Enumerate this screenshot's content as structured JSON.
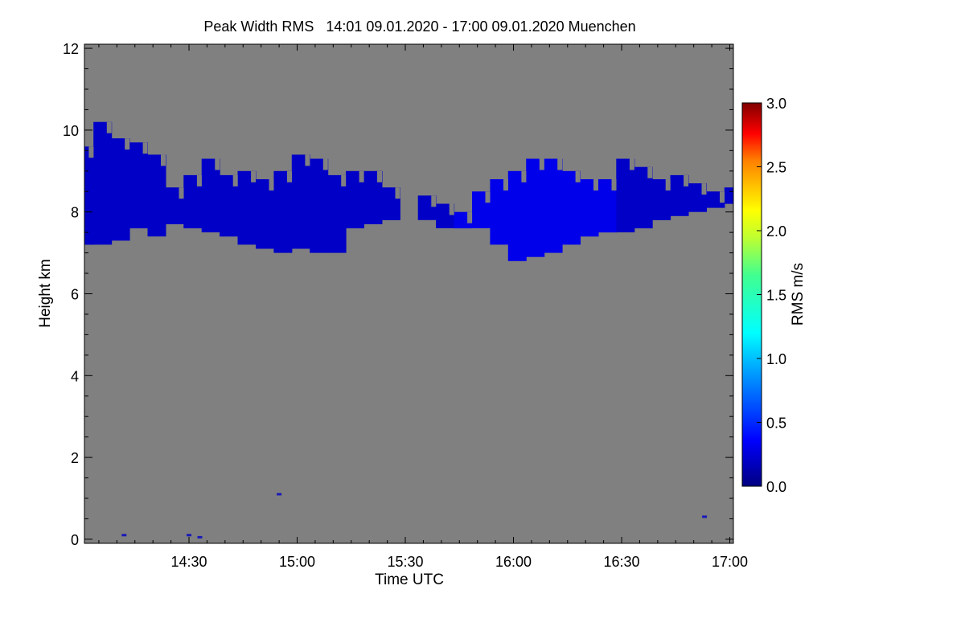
{
  "chart_data": {
    "type": "heatmap",
    "title": "Peak Width RMS   14:01 09.01.2020 - 17:00 09.01.2020 Muenchen",
    "xlabel": "Time UTC",
    "ylabel": "Height km",
    "colorbar_label": "RMS m/s",
    "x_range_minutes_utc": [
      841,
      1021
    ],
    "x_ticks": [
      {
        "minutes": 870,
        "label": "14:30"
      },
      {
        "minutes": 900,
        "label": "15:00"
      },
      {
        "minutes": 930,
        "label": "15:30"
      },
      {
        "minutes": 960,
        "label": "16:00"
      },
      {
        "minutes": 990,
        "label": "16:30"
      },
      {
        "minutes": 1020,
        "label": "17:00"
      }
    ],
    "ylim": [
      -0.1,
      12.1
    ],
    "y_ticks": [
      0,
      2,
      4,
      6,
      8,
      10,
      12
    ],
    "colorbar_range": [
      0.0,
      3.0
    ],
    "colorbar_ticks": [
      "0.0",
      "0.5",
      "1.0",
      "1.5",
      "2.0",
      "2.5",
      "3.0"
    ],
    "colormap": "rainbow (dark blue to dark red)",
    "background_color": "#808080",
    "cloud_color": "#1a1ab8",
    "cloud_layer": {
      "x_minutes": [
        841,
        846,
        851,
        856,
        861,
        866,
        871,
        876,
        881,
        886,
        891,
        896,
        901,
        906,
        911,
        916,
        921,
        926,
        931,
        936,
        941,
        946,
        951,
        956,
        961,
        966,
        971,
        976,
        981,
        986,
        991,
        996,
        1001,
        1006,
        1011,
        1016,
        1021
      ],
      "base_km": [
        7.2,
        7.2,
        7.3,
        7.6,
        7.4,
        7.7,
        7.6,
        7.5,
        7.4,
        7.2,
        7.1,
        7.0,
        7.1,
        7.0,
        7.0,
        7.6,
        7.7,
        7.8,
        8.0,
        7.8,
        7.6,
        7.6,
        7.6,
        7.2,
        6.8,
        6.9,
        7.0,
        7.2,
        7.4,
        7.5,
        7.5,
        7.6,
        7.8,
        7.9,
        8.0,
        8.1,
        8.2
      ],
      "top_km": [
        9.6,
        10.2,
        9.8,
        9.7,
        9.4,
        8.6,
        8.9,
        9.3,
        8.9,
        9.0,
        8.8,
        9.0,
        9.4,
        9.3,
        8.9,
        9.0,
        9.0,
        8.6,
        7.8,
        8.4,
        8.2,
        8.0,
        8.5,
        8.8,
        9.0,
        9.3,
        9.3,
        9.0,
        8.8,
        8.8,
        9.3,
        9.1,
        8.8,
        8.9,
        8.7,
        8.5,
        8.6
      ],
      "rms_m_s": [
        0.2,
        0.2,
        0.2,
        0.2,
        0.2,
        0.2,
        0.2,
        0.2,
        0.2,
        0.2,
        0.2,
        0.2,
        0.2,
        0.2,
        0.2,
        0.2,
        0.2,
        0.2,
        0.2,
        0.2,
        0.2,
        0.3,
        0.3,
        0.3,
        0.3,
        0.3,
        0.3,
        0.3,
        0.3,
        0.3,
        0.2,
        0.2,
        0.2,
        0.2,
        0.2,
        0.2,
        0.2
      ]
    },
    "specks": [
      {
        "t": 852,
        "h": 0.1
      },
      {
        "t": 870,
        "h": 0.1
      },
      {
        "t": 873,
        "h": 0.05
      },
      {
        "t": 895,
        "h": 1.1
      },
      {
        "t": 1013,
        "h": 0.55
      }
    ]
  }
}
